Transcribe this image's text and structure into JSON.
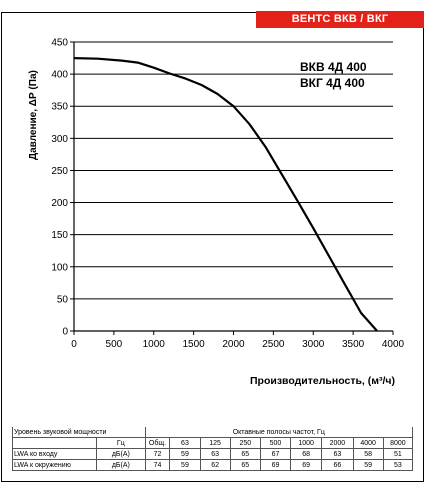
{
  "header": {
    "brand": "ВЕНТС ВКВ / ВКГ"
  },
  "chart_data": {
    "type": "line",
    "title_lines": [
      "ВКВ 4Д 400",
      "ВКГ 4Д 400"
    ],
    "xlabel": "Производительность, (м³/ч)",
    "ylabel": "Давление, ΔР (Па)",
    "xlim": [
      0,
      4000
    ],
    "ylim": [
      0,
      450
    ],
    "xticks": [
      0,
      500,
      1000,
      1500,
      2000,
      2500,
      3000,
      3500,
      4000
    ],
    "yticks": [
      0,
      50,
      100,
      150,
      200,
      250,
      300,
      350,
      400,
      450
    ],
    "grid": "horizontal",
    "series": [
      {
        "x": [
          0,
          300,
          600,
          800,
          1000,
          1200,
          1400,
          1600,
          1800,
          2000,
          2200,
          2400,
          2600,
          2800,
          3000,
          3200,
          3400,
          3600,
          3800
        ],
        "y": [
          425,
          424,
          421,
          418,
          410,
          401,
          393,
          383,
          369,
          350,
          322,
          287,
          245,
          203,
          160,
          116,
          72,
          28,
          0
        ]
      }
    ]
  },
  "noise_table": {
    "header_left": "Уровень звуковой мощности",
    "header_right": "Октавные полосы частот, Гц",
    "unit_label": "Гц",
    "columns": [
      "Общ.",
      "63",
      "125",
      "250",
      "500",
      "1000",
      "2000",
      "4000",
      "8000"
    ],
    "rows": [
      {
        "label": "LWA ко входу",
        "unit": "дБ(А)",
        "values": [
          "72",
          "59",
          "63",
          "65",
          "67",
          "68",
          "63",
          "58",
          "51"
        ]
      },
      {
        "label": "LWA к окружению",
        "unit": "дБ(А)",
        "values": [
          "74",
          "59",
          "62",
          "65",
          "69",
          "69",
          "66",
          "59",
          "53"
        ]
      }
    ]
  }
}
